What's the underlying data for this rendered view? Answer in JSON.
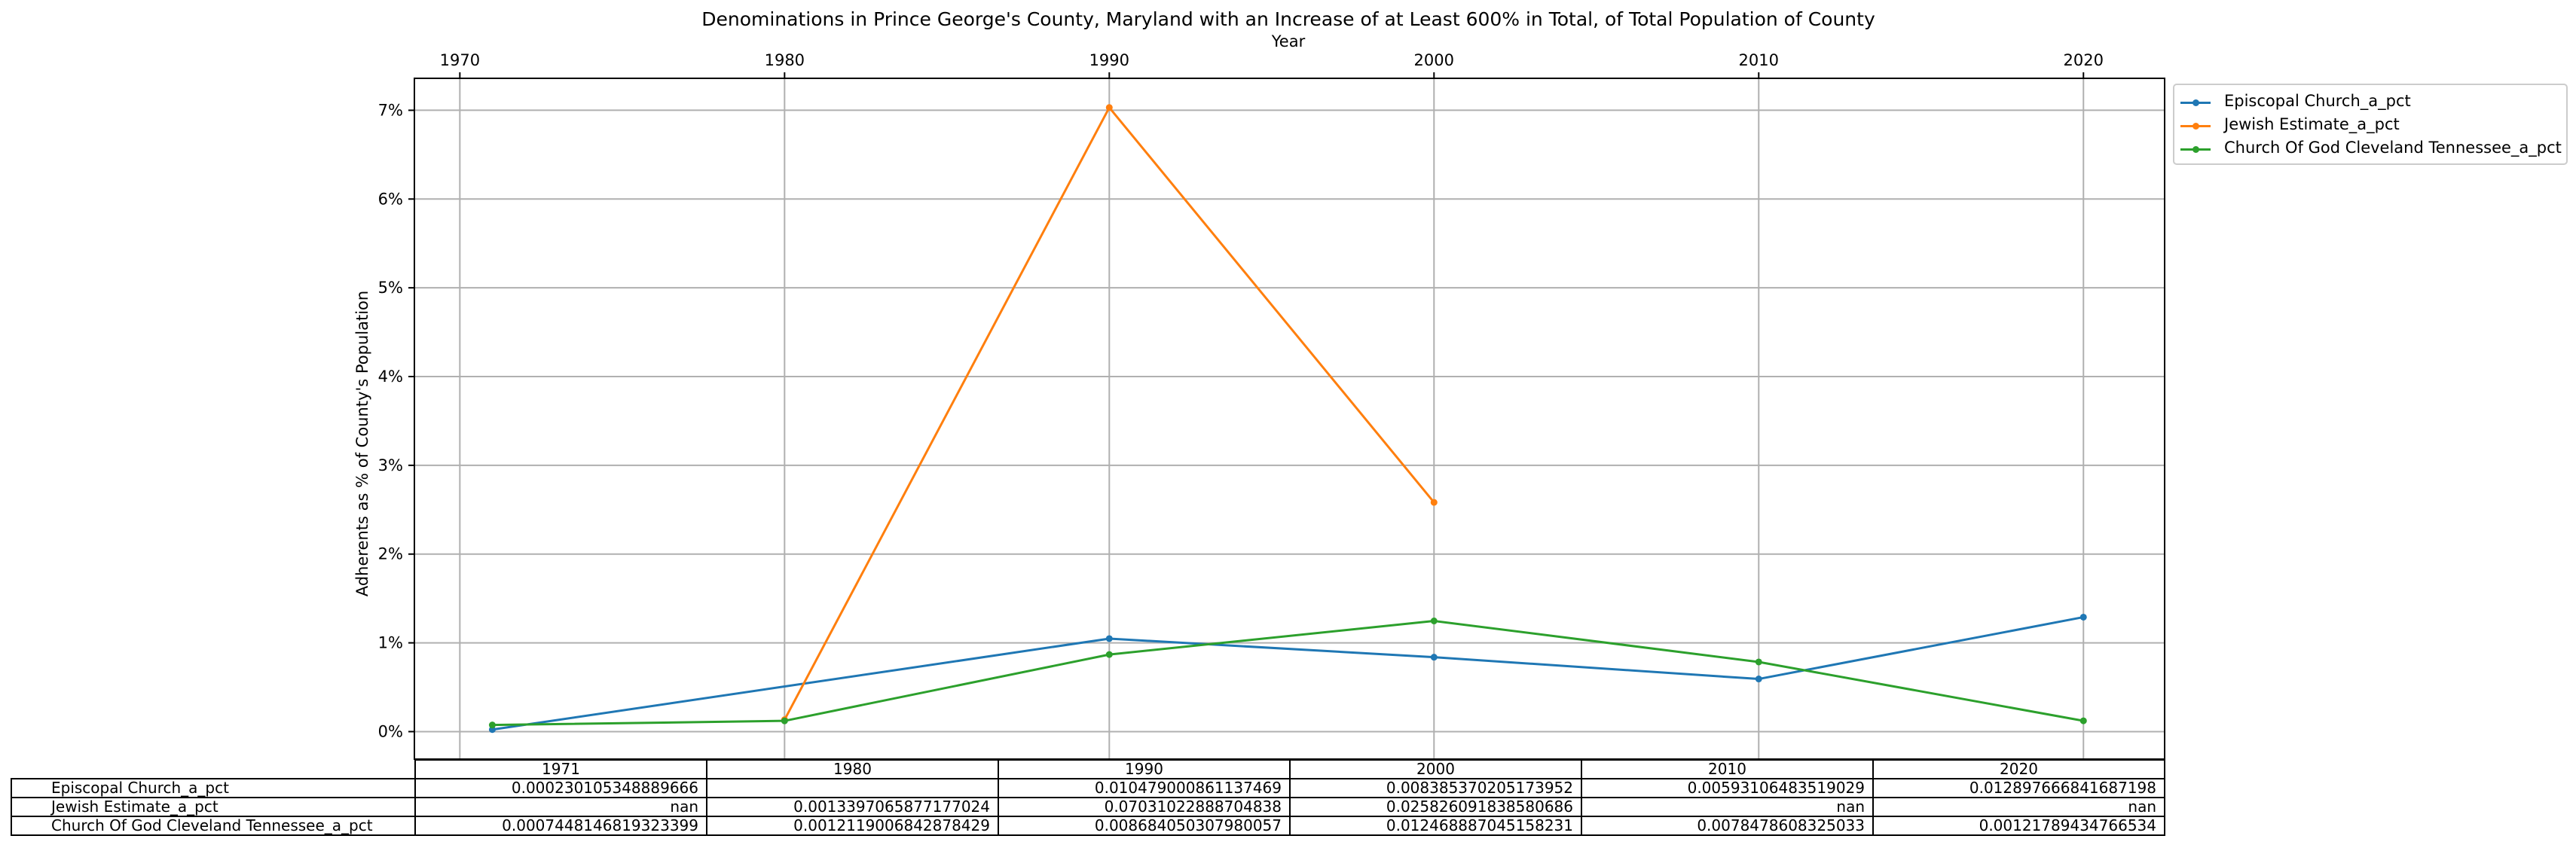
{
  "chart_data": {
    "type": "line",
    "title": "Denominations in Prince George's County, Maryland with an Increase of at Least 600% in Total, of Total Population of County",
    "xlabel": "Year",
    "ylabel": "Adherents as % of County's Population",
    "x_ticks": [
      1970,
      1980,
      1990,
      2000,
      2010,
      2020
    ],
    "y_ticks": [
      "0%",
      "1%",
      "2%",
      "3%",
      "4%",
      "5%",
      "6%",
      "7%"
    ],
    "xlim": [
      1968.6,
      2022.5
    ],
    "ylim": [
      -0.0031,
      0.0736
    ],
    "grid": true,
    "legend_position": "outside-right",
    "x": [
      1971,
      1980,
      1990,
      2000,
      2010,
      2020
    ],
    "series": [
      {
        "name": "Episcopal Church_a_pct",
        "color": "#1f77b4",
        "values": [
          0.00023010534888966,
          null,
          0.010479000861137469,
          0.008385370205173952,
          0.00593106483519029,
          0.012897666841687198
        ]
      },
      {
        "name": "Jewish Estimate_a_pct",
        "color": "#ff7f0e",
        "values": [
          null,
          0.0013397065877177024,
          0.07031022888704838,
          0.025826091838580686,
          null,
          null
        ]
      },
      {
        "name": "Church Of God Cleveland Tennessee_a_pct",
        "color": "#2ca02c",
        "values": [
          0.0007448146819323399,
          0.0012119006842878429,
          0.008684050307980057,
          0.012468887045158231,
          0.0078478608325033,
          0.00121789434766534
        ]
      }
    ]
  },
  "table": {
    "columns": [
      "1971",
      "1980",
      "1990",
      "2000",
      "2010",
      "2020"
    ],
    "rows": [
      {
        "label": "Episcopal Church_a_pct",
        "cells": [
          "0.000230105348889666",
          "",
          "0.010479000861137469",
          "0.008385370205173952",
          "0.00593106483519029",
          "0.012897666841687198"
        ]
      },
      {
        "label": "Jewish Estimate_a_pct",
        "cells": [
          "nan",
          "0.0013397065877177024",
          "0.07031022888704838",
          "0.025826091838580686",
          "nan",
          "nan"
        ]
      },
      {
        "label": "Church Of God Cleveland Tennessee_a_pct",
        "cells": [
          "0.0007448146819323399",
          "0.0012119006842878429",
          "0.008684050307980057",
          "0.012468887045158231",
          "0.0078478608325033",
          "0.00121789434766534"
        ]
      }
    ]
  }
}
